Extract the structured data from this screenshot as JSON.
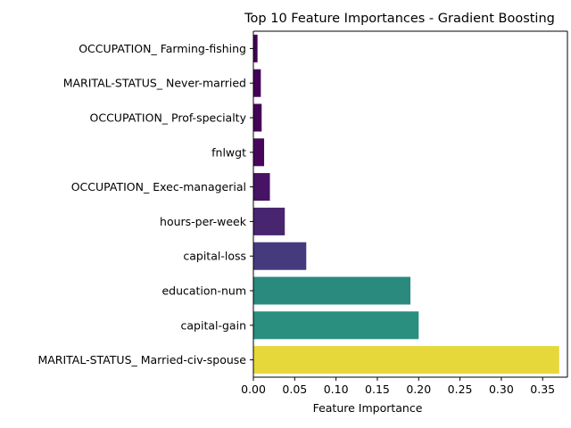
{
  "chart_data": {
    "type": "bar",
    "orientation": "horizontal",
    "title": "Top 10 Feature Importances - Gradient Boosting",
    "xlabel": "Feature Importance",
    "ylabel": "",
    "xlim": [
      0,
      0.38
    ],
    "xticks": [
      0.0,
      0.05,
      0.1,
      0.15,
      0.2,
      0.25,
      0.3,
      0.35
    ],
    "xtick_labels": [
      "0.00",
      "0.05",
      "0.10",
      "0.15",
      "0.20",
      "0.25",
      "0.30",
      "0.35"
    ],
    "grid": false,
    "legend": "none",
    "categories": [
      "OCCUPATION_ Farming-fishing",
      "MARITAL-STATUS_ Never-married",
      "OCCUPATION_ Prof-specialty",
      "fnlwgt",
      "OCCUPATION_ Exec-managerial",
      "hours-per-week",
      "capital-loss",
      "education-num",
      "capital-gain",
      "MARITAL-STATUS_ Married-civ-spouse"
    ],
    "values": [
      0.005,
      0.009,
      0.01,
      0.013,
      0.02,
      0.038,
      0.064,
      0.19,
      0.2,
      0.37
    ],
    "colors": [
      "#440154",
      "#440256",
      "#450457",
      "#46075a",
      "#471365",
      "#48256f",
      "#453a7d",
      "#2a8a7e",
      "#2a8f7f",
      "#e6d83a"
    ]
  }
}
